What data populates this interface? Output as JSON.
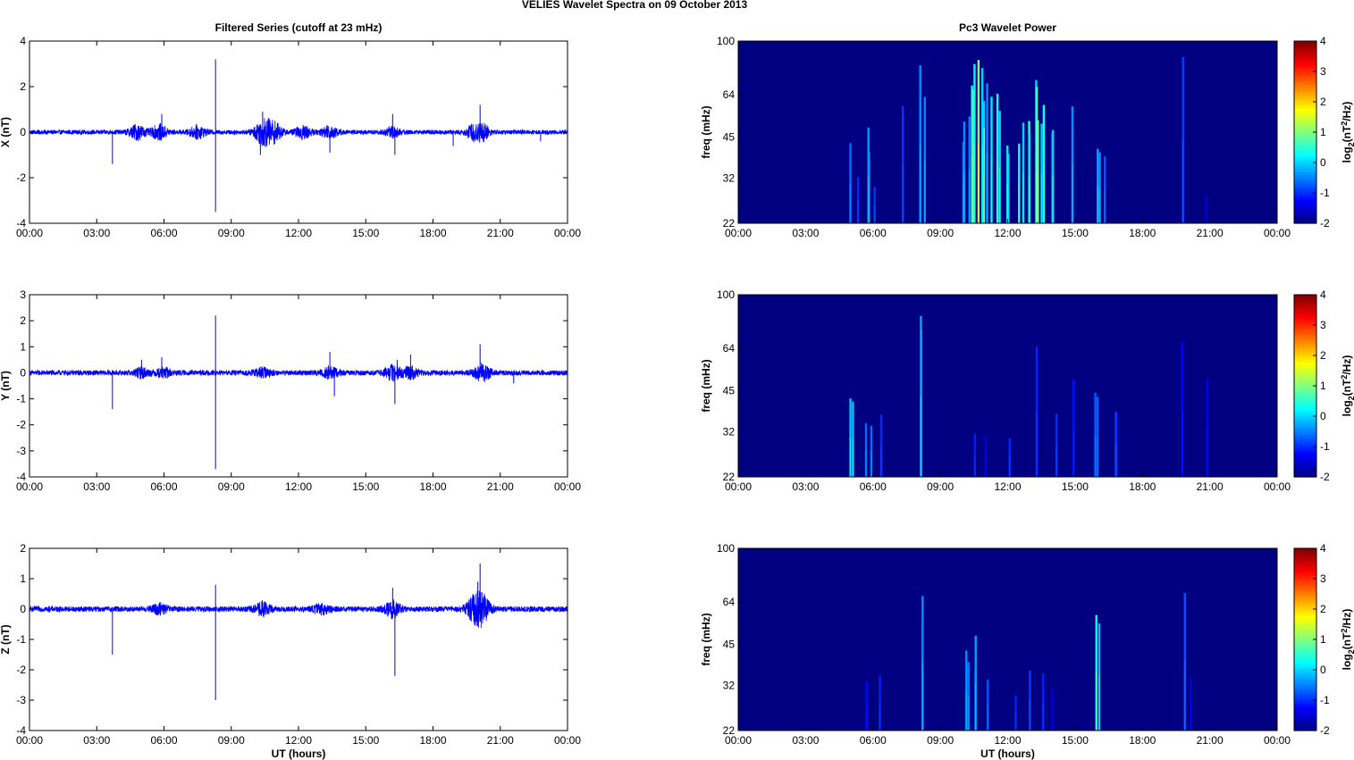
{
  "figure_title": "VELIES Wavelet Spectra on 09 October   2013",
  "chart_data": [
    {
      "type": "line",
      "title": "Filtered Series (cutoff at 23 mHz)",
      "xlabel": "",
      "ylabel": "X (nT)",
      "xticks": [
        "00:00",
        "03:00",
        "06:00",
        "09:00",
        "12:00",
        "15:00",
        "18:00",
        "21:00",
        "00:00"
      ],
      "xlim_hours": [
        0,
        24
      ],
      "ylim": [
        -4,
        4
      ],
      "yticks": [
        -4,
        -2,
        0,
        2,
        4
      ],
      "color": "#0000ff",
      "baseline_amplitude": 0.1,
      "activity": [
        [
          4.8,
          0.3
        ],
        [
          5.8,
          0.3
        ],
        [
          7.5,
          0.25
        ],
        [
          10.4,
          0.5
        ],
        [
          10.9,
          0.4
        ],
        [
          12.2,
          0.25
        ],
        [
          13.4,
          0.25
        ],
        [
          16.2,
          0.2
        ],
        [
          19.8,
          0.25
        ],
        [
          20.2,
          0.3
        ]
      ],
      "spikes": [
        [
          3.7,
          -1.4
        ],
        [
          5.9,
          0.8
        ],
        [
          8.3,
          3.2
        ],
        [
          8.3,
          -3.5
        ],
        [
          10.4,
          0.9
        ],
        [
          10.3,
          -1.0
        ],
        [
          13.4,
          -0.9
        ],
        [
          16.3,
          -1.0
        ],
        [
          16.2,
          0.8
        ],
        [
          20.1,
          1.2
        ],
        [
          18.9,
          -0.6
        ],
        [
          22.8,
          -0.4
        ]
      ]
    },
    {
      "type": "line",
      "title": "",
      "xlabel": "",
      "ylabel": "Y (nT)",
      "xticks": [
        "00:00",
        "03:00",
        "06:00",
        "09:00",
        "12:00",
        "15:00",
        "18:00",
        "21:00",
        "00:00"
      ],
      "xlim_hours": [
        0,
        24
      ],
      "ylim": [
        -4,
        3
      ],
      "yticks": [
        -4,
        -3,
        -2,
        -1,
        0,
        1,
        2,
        3
      ],
      "color": "#0000ff",
      "baseline_amplitude": 0.1,
      "activity": [
        [
          5.0,
          0.15
        ],
        [
          6.0,
          0.15
        ],
        [
          10.4,
          0.15
        ],
        [
          13.4,
          0.2
        ],
        [
          16.2,
          0.25
        ],
        [
          17.0,
          0.2
        ],
        [
          20.2,
          0.3
        ]
      ],
      "spikes": [
        [
          3.7,
          -1.4
        ],
        [
          5.0,
          0.5
        ],
        [
          5.9,
          0.6
        ],
        [
          8.3,
          2.2
        ],
        [
          8.3,
          -3.7
        ],
        [
          13.4,
          0.8
        ],
        [
          13.6,
          -0.9
        ],
        [
          16.3,
          -1.2
        ],
        [
          16.4,
          0.5
        ],
        [
          17.0,
          0.7
        ],
        [
          20.1,
          1.1
        ],
        [
          21.6,
          -0.4
        ]
      ]
    },
    {
      "type": "line",
      "title": "",
      "xlabel": "UT (hours)",
      "ylabel": "Z (nT)",
      "xticks": [
        "00:00",
        "03:00",
        "06:00",
        "09:00",
        "12:00",
        "15:00",
        "18:00",
        "21:00",
        "00:00"
      ],
      "xlim_hours": [
        0,
        24
      ],
      "ylim": [
        -4,
        2
      ],
      "yticks": [
        -4,
        -3,
        -2,
        -1,
        0,
        1,
        2
      ],
      "color": "#0000ff",
      "baseline_amplitude": 0.09,
      "activity": [
        [
          5.8,
          0.15
        ],
        [
          10.4,
          0.2
        ],
        [
          13.0,
          0.15
        ],
        [
          16.2,
          0.25
        ],
        [
          19.8,
          0.3
        ],
        [
          20.2,
          0.45
        ]
      ],
      "spikes": [
        [
          3.7,
          -1.5
        ],
        [
          8.3,
          0.8
        ],
        [
          8.3,
          -3.0
        ],
        [
          16.3,
          -2.2
        ],
        [
          16.2,
          0.7
        ],
        [
          20.1,
          1.5
        ],
        [
          20.0,
          0.9
        ]
      ]
    },
    {
      "type": "heatmap",
      "title": "Pc3 Wavelet Power",
      "xlabel": "",
      "ylabel": "freq (mHz)",
      "xticks": [
        "00:00",
        "03:00",
        "06:00",
        "09:00",
        "12:00",
        "15:00",
        "18:00",
        "21:00",
        "00:00"
      ],
      "yticks": [
        "22",
        "32",
        "45",
        "64",
        "100"
      ],
      "colorbar_label": "log2(nT2/Hz)",
      "colorbar_ticks": [
        -2,
        -1,
        0,
        1,
        2,
        3,
        4
      ],
      "clim": [
        -2,
        4
      ],
      "background_value": -2,
      "streaks": [
        [
          5.0,
          0.5,
          0.25
        ],
        [
          5.4,
          0.35,
          0.2
        ],
        [
          5.8,
          0.6,
          0.3
        ],
        [
          6.0,
          0.3,
          0.2
        ],
        [
          7.4,
          0.7,
          0.2
        ],
        [
          8.2,
          0.9,
          0.45
        ],
        [
          10.1,
          0.55,
          0.3
        ],
        [
          10.3,
          0.9,
          0.45
        ],
        [
          10.6,
          0.95,
          0.55
        ],
        [
          10.9,
          0.85,
          0.5
        ],
        [
          11.2,
          0.8,
          0.45
        ],
        [
          11.6,
          0.7,
          0.4
        ],
        [
          12.0,
          0.6,
          0.4
        ],
        [
          12.6,
          0.65,
          0.4
        ],
        [
          13.0,
          0.7,
          0.45
        ],
        [
          13.3,
          0.75,
          0.5
        ],
        [
          13.6,
          0.7,
          0.45
        ],
        [
          14.0,
          0.6,
          0.35
        ],
        [
          15.0,
          0.8,
          0.3
        ],
        [
          16.1,
          0.6,
          0.35
        ],
        [
          16.4,
          0.45,
          0.25
        ],
        [
          19.9,
          0.95,
          0.2
        ],
        [
          20.8,
          0.25,
          0.15
        ]
      ]
    },
    {
      "type": "heatmap",
      "title": "",
      "xlabel": "",
      "ylabel": "freq (mHz)",
      "xticks": [
        "00:00",
        "03:00",
        "06:00",
        "09:00",
        "12:00",
        "15:00",
        "18:00",
        "21:00",
        "00:00"
      ],
      "yticks": [
        "22",
        "32",
        "45",
        "64",
        "100"
      ],
      "colorbar_label": "log2(nT2/Hz)",
      "colorbar_ticks": [
        -2,
        -1,
        0,
        1,
        2,
        3,
        4
      ],
      "clim": [
        -2,
        4
      ],
      "background_value": -2,
      "streaks": [
        [
          5.1,
          0.5,
          0.4
        ],
        [
          5.8,
          0.45,
          0.3
        ],
        [
          6.3,
          0.35,
          0.2
        ],
        [
          8.2,
          0.85,
          0.35
        ],
        [
          10.5,
          0.35,
          0.2
        ],
        [
          11.0,
          0.3,
          0.15
        ],
        [
          12.0,
          0.35,
          0.2
        ],
        [
          13.3,
          0.9,
          0.25
        ],
        [
          14.2,
          0.4,
          0.2
        ],
        [
          15.0,
          0.85,
          0.2
        ],
        [
          16.0,
          0.5,
          0.3
        ],
        [
          16.8,
          0.45,
          0.3
        ],
        [
          19.9,
          0.9,
          0.15
        ],
        [
          20.8,
          0.6,
          0.15
        ]
      ]
    },
    {
      "type": "heatmap",
      "title": "",
      "xlabel": "UT (hours)",
      "ylabel": "freq (mHz)",
      "xticks": [
        "00:00",
        "03:00",
        "06:00",
        "09:00",
        "12:00",
        "15:00",
        "18:00",
        "21:00",
        "00:00"
      ],
      "yticks": [
        "22",
        "32",
        "45",
        "64",
        "100"
      ],
      "colorbar_label": "log2(nT2/Hz)",
      "colorbar_ticks": [
        -2,
        -1,
        0,
        1,
        2,
        3,
        4
      ],
      "clim": [
        -2,
        4
      ],
      "background_value": -2,
      "streaks": [
        [
          5.7,
          0.35,
          0.2
        ],
        [
          6.2,
          0.3,
          0.2
        ],
        [
          8.2,
          0.9,
          0.4
        ],
        [
          10.2,
          0.45,
          0.3
        ],
        [
          10.6,
          0.5,
          0.3
        ],
        [
          11.0,
          0.4,
          0.25
        ],
        [
          12.4,
          0.3,
          0.2
        ],
        [
          13.0,
          0.35,
          0.25
        ],
        [
          13.5,
          0.35,
          0.2
        ],
        [
          14.0,
          0.25,
          0.15
        ],
        [
          16.0,
          0.7,
          0.4
        ],
        [
          19.9,
          0.95,
          0.25
        ],
        [
          20.1,
          0.3,
          0.15
        ]
      ]
    }
  ]
}
